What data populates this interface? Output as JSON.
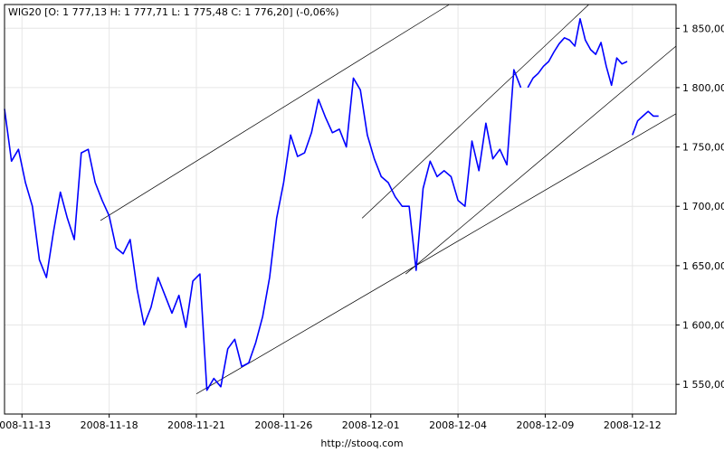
{
  "legend": "WIG20 [O: 1 777,13  H: 1 777,71  L: 1 775,48  C: 1 776,20] (-0,06%)",
  "footer": "http://stooq.com",
  "colors": {
    "series": "#0000ff",
    "grid": "#e6e6e6",
    "trend": "#000000",
    "frame": "#000000"
  },
  "chart_data": {
    "type": "line",
    "series": [
      {
        "name": "WIG20",
        "x": [
          0,
          0.4,
          0.8,
          1.2,
          1.6,
          2.0,
          2.4,
          2.8,
          3.2,
          3.6,
          4.0,
          4.4,
          4.8,
          5.2,
          5.6,
          6.0,
          6.4,
          6.8,
          7.2,
          7.6,
          8.0,
          8.4,
          8.8,
          9.2,
          9.6,
          10.0,
          10.4,
          10.8,
          11.2,
          11.6,
          12.0,
          12.4,
          12.8,
          13.2,
          13.6,
          14.0,
          14.4,
          14.8,
          15.2,
          15.6,
          16.0,
          16.4,
          16.8,
          17.2,
          17.6,
          18.0,
          18.4,
          18.8,
          19.2,
          19.6,
          20.0,
          20.4,
          20.8,
          21.2,
          21.6,
          22.0,
          22.4,
          22.8,
          23.2,
          23.6,
          24.0,
          24.4,
          24.8,
          25.2,
          25.6,
          26.0,
          26.4,
          26.8,
          27.2,
          27.6,
          28.0,
          28.4,
          28.8,
          29.2,
          29.6
        ],
        "values": [
          1782,
          1738,
          1748,
          1720,
          1700,
          1655,
          1640,
          1678,
          1712,
          1690,
          1672,
          1745,
          1748,
          1720,
          1705,
          1692,
          1665,
          1660,
          1672,
          1630,
          1600,
          1615,
          1640,
          1625,
          1610,
          1625,
          1598,
          1637,
          1643,
          1545,
          1555,
          1548,
          1580,
          1588,
          1565,
          1568,
          1585,
          1607,
          1640,
          1690,
          1720,
          1760,
          1742,
          1745,
          1762,
          1790,
          1775,
          1762,
          1765,
          1750,
          1808,
          1798,
          1760,
          1740,
          1725,
          1720,
          1708,
          1700,
          1700,
          1646,
          1715,
          1738,
          1725,
          1730,
          1725,
          1705,
          1700,
          1755,
          1730,
          1770,
          1740,
          1748,
          1735,
          1815,
          1800
        ]
      },
      {
        "name": "WIG20",
        "x": [
          30.0,
          30.3,
          30.6,
          30.9,
          31.2,
          31.5,
          31.8,
          32.1,
          32.4,
          32.7,
          33.0,
          33.3,
          33.6,
          33.9,
          34.2,
          34.5,
          34.8,
          35.1,
          35.4,
          35.7
        ],
        "values": [
          1800,
          1808,
          1812,
          1818,
          1822,
          1830,
          1837,
          1842,
          1840,
          1835,
          1858,
          1840,
          1832,
          1828,
          1838,
          1818,
          1802,
          1825,
          1820,
          1822
        ]
      },
      {
        "name": "WIG20",
        "x": [
          36.0,
          36.3,
          36.6,
          36.9,
          37.2,
          37.5
        ],
        "values": [
          1760,
          1772,
          1776,
          1780,
          1776,
          1776
        ]
      }
    ],
    "x_tick_labels": [
      "2008-11-13",
      "2008-11-18",
      "2008-11-21",
      "2008-11-26",
      "2008-12-01",
      "2008-12-04",
      "2008-12-09",
      "2008-12-12"
    ],
    "x_tick_positions": [
      1,
      6,
      11,
      16,
      21,
      26,
      31,
      36
    ],
    "y_ticks": [
      "1 550,00",
      "1 600,00",
      "1 650,00",
      "1 700,00",
      "1 750,00",
      "1 800,00",
      "1 850,00"
    ],
    "y_tick_values": [
      1550,
      1600,
      1650,
      1700,
      1750,
      1800,
      1850
    ],
    "xlim": [
      0,
      38.5
    ],
    "ylim": [
      1525,
      1870
    ],
    "trend_lines": [
      {
        "x1": 5.5,
        "y1": 1688,
        "x2": 25.5,
        "y2": 1870
      },
      {
        "x1": 11,
        "y1": 1542,
        "x2": 38.5,
        "y2": 1778
      },
      {
        "x1": 23,
        "y1": 1643,
        "x2": 38.5,
        "y2": 1835
      },
      {
        "x1": 20.5,
        "y1": 1690,
        "x2": 33.5,
        "y2": 1870
      }
    ],
    "grid": true
  }
}
